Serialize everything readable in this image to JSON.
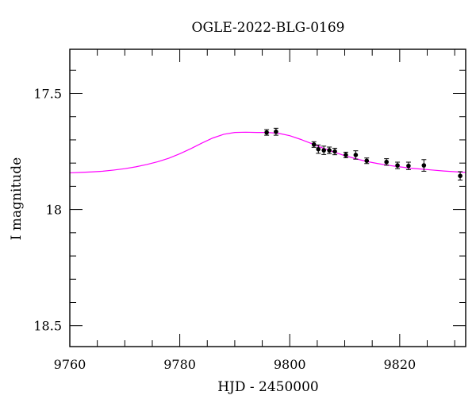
{
  "chart_data": {
    "type": "scatter",
    "title": "OGLE-2022-BLG-0169",
    "xlabel": "HJD - 2450000",
    "ylabel": "I magnitude",
    "xlim": [
      9760,
      9832
    ],
    "ylim": [
      18.59,
      17.31
    ],
    "y_inverted": true,
    "xticks": [
      {
        "value": 9760,
        "label": "9760"
      },
      {
        "value": 9780,
        "label": "9780"
      },
      {
        "value": 9800,
        "label": "9800"
      },
      {
        "value": 9820,
        "label": "9820"
      }
    ],
    "yticks": [
      {
        "value": 17.5,
        "label": "17.5"
      },
      {
        "value": 18.0,
        "label": "18"
      },
      {
        "value": 18.5,
        "label": "18.5"
      }
    ],
    "x_minor_step": 5,
    "y_minor_step": 0.1,
    "grid": false,
    "points_color": "#000000",
    "model_color": "#ff00ff",
    "points": [
      {
        "x": 9795.8,
        "y": 17.668,
        "err": 0.012
      },
      {
        "x": 9797.5,
        "y": 17.665,
        "err": 0.015
      },
      {
        "x": 9804.4,
        "y": 17.72,
        "err": 0.012
      },
      {
        "x": 9805.2,
        "y": 17.74,
        "err": 0.018
      },
      {
        "x": 9806.2,
        "y": 17.745,
        "err": 0.018
      },
      {
        "x": 9807.2,
        "y": 17.745,
        "err": 0.014
      },
      {
        "x": 9808.2,
        "y": 17.75,
        "err": 0.014
      },
      {
        "x": 9810.2,
        "y": 17.765,
        "err": 0.012
      },
      {
        "x": 9812.0,
        "y": 17.765,
        "err": 0.018
      },
      {
        "x": 9814.0,
        "y": 17.79,
        "err": 0.012
      },
      {
        "x": 9817.6,
        "y": 17.795,
        "err": 0.014
      },
      {
        "x": 9819.6,
        "y": 17.81,
        "err": 0.014
      },
      {
        "x": 9821.6,
        "y": 17.812,
        "err": 0.016
      },
      {
        "x": 9824.4,
        "y": 17.81,
        "err": 0.025
      },
      {
        "x": 9831.0,
        "y": 17.855,
        "err": 0.018
      }
    ],
    "model": {
      "x": [
        9760,
        9762,
        9764,
        9766,
        9768,
        9770,
        9772,
        9774,
        9776,
        9778,
        9780,
        9782,
        9784,
        9786,
        9788,
        9790,
        9792,
        9794,
        9796,
        9798,
        9800,
        9802,
        9804,
        9806,
        9808,
        9810,
        9812,
        9814,
        9816,
        9818,
        9820,
        9822,
        9824,
        9826,
        9828,
        9830,
        9832
      ],
      "y": [
        17.842,
        17.84,
        17.838,
        17.835,
        17.83,
        17.824,
        17.816,
        17.806,
        17.794,
        17.779,
        17.76,
        17.738,
        17.714,
        17.692,
        17.676,
        17.668,
        17.667,
        17.668,
        17.668,
        17.672,
        17.682,
        17.698,
        17.716,
        17.735,
        17.752,
        17.768,
        17.781,
        17.793,
        17.802,
        17.81,
        17.816,
        17.822,
        17.826,
        17.83,
        17.834,
        17.837,
        17.84
      ]
    }
  }
}
